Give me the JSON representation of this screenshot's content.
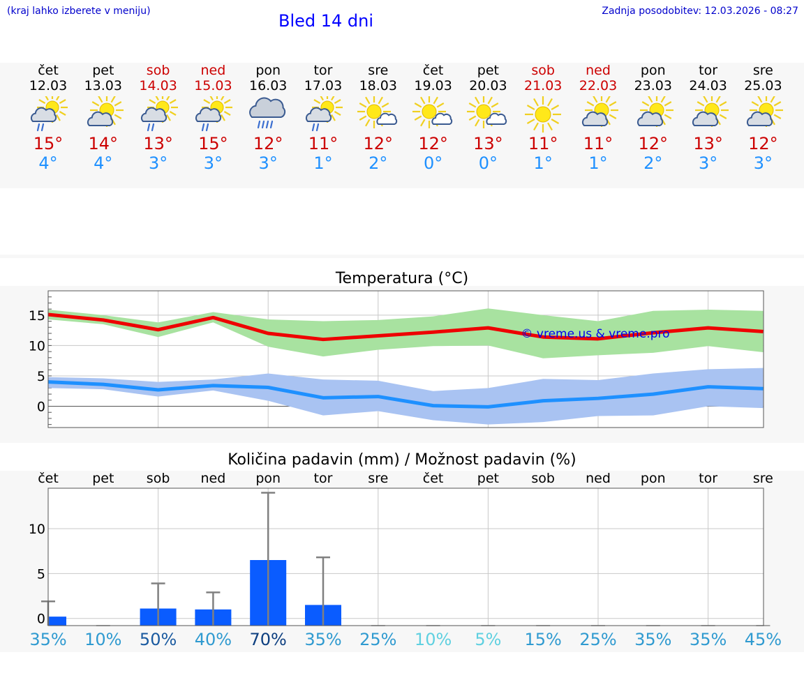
{
  "header": {
    "hint": "(kraj lahko izberete v meniju)",
    "title": "Bled 14 dni",
    "updated": "Zadnja posodobitev: 12.03.2026 - 08:27"
  },
  "days": [
    {
      "name": "čet",
      "date": "12.03",
      "weekend": false,
      "icon": "sun-cloud-light-rain-icon",
      "tmax": "15°",
      "tmin": "4°"
    },
    {
      "name": "pet",
      "date": "13.03",
      "weekend": false,
      "icon": "sun-cloud-icon",
      "tmax": "14°",
      "tmin": "4°"
    },
    {
      "name": "sob",
      "date": "14.03",
      "weekend": true,
      "icon": "sun-cloud-light-rain-icon",
      "tmax": "13°",
      "tmin": "3°"
    },
    {
      "name": "ned",
      "date": "15.03",
      "weekend": true,
      "icon": "sun-cloud-light-rain-icon",
      "tmax": "15°",
      "tmin": "3°"
    },
    {
      "name": "pon",
      "date": "16.03",
      "weekend": false,
      "icon": "cloud-rain-icon",
      "tmax": "12°",
      "tmin": "3°"
    },
    {
      "name": "tor",
      "date": "17.03",
      "weekend": false,
      "icon": "sun-cloud-light-rain-icon",
      "tmax": "11°",
      "tmin": "1°"
    },
    {
      "name": "sre",
      "date": "18.03",
      "weekend": false,
      "icon": "sun-small-cloud-icon",
      "tmax": "12°",
      "tmin": "2°"
    },
    {
      "name": "čet",
      "date": "19.03",
      "weekend": false,
      "icon": "sun-small-cloud-icon",
      "tmax": "12°",
      "tmin": "0°"
    },
    {
      "name": "pet",
      "date": "20.03",
      "weekend": false,
      "icon": "sun-small-cloud-icon",
      "tmax": "13°",
      "tmin": "0°"
    },
    {
      "name": "sob",
      "date": "21.03",
      "weekend": true,
      "icon": "sun-icon",
      "tmax": "11°",
      "tmin": "1°"
    },
    {
      "name": "ned",
      "date": "22.03",
      "weekend": true,
      "icon": "sun-cloud-icon",
      "tmax": "11°",
      "tmin": "1°"
    },
    {
      "name": "pon",
      "date": "23.03",
      "weekend": false,
      "icon": "sun-cloud-icon",
      "tmax": "12°",
      "tmin": "2°"
    },
    {
      "name": "tor",
      "date": "24.03",
      "weekend": false,
      "icon": "sun-cloud-icon",
      "tmax": "13°",
      "tmin": "3°"
    },
    {
      "name": "sre",
      "date": "25.03",
      "weekend": false,
      "icon": "sun-cloud-icon",
      "tmax": "12°",
      "tmin": "3°"
    }
  ],
  "chart_data": [
    {
      "type": "line",
      "title": "Temperatura (°C)",
      "watermark": "© vreme.us & vreme.pro",
      "ylim": [
        -3.5,
        19
      ],
      "yticks": [
        0,
        5,
        10,
        15
      ],
      "x": [
        1,
        2,
        3,
        4,
        5,
        6,
        7,
        8,
        9,
        10,
        11,
        12,
        13,
        14
      ],
      "series": [
        {
          "name": "max",
          "color": "#ee0000",
          "values": [
            15.1,
            14.2,
            12.6,
            14.6,
            12.0,
            11.0,
            11.6,
            12.2,
            12.9,
            11.4,
            11.1,
            12.1,
            12.9,
            12.3
          ],
          "band_low": [
            14.3,
            13.5,
            11.4,
            13.8,
            9.8,
            8.2,
            9.3,
            9.9,
            10.0,
            7.9,
            8.4,
            8.8,
            9.9,
            8.9
          ],
          "band_high": [
            15.9,
            15.0,
            13.8,
            15.5,
            14.3,
            14.0,
            14.2,
            14.8,
            16.1,
            15.0,
            14.0,
            15.7,
            15.9,
            15.7
          ],
          "band_color": "#a8e2a0"
        },
        {
          "name": "min",
          "color": "#1e90ff",
          "values": [
            4.0,
            3.6,
            2.7,
            3.4,
            3.1,
            1.4,
            1.6,
            0.1,
            -0.1,
            0.9,
            1.3,
            2.0,
            3.2,
            2.9
          ],
          "band_low": [
            3.0,
            2.8,
            1.6,
            2.6,
            0.9,
            -1.5,
            -0.8,
            -2.3,
            -3.0,
            -2.6,
            -1.6,
            -1.5,
            0.0,
            -0.3
          ],
          "band_high": [
            4.8,
            4.6,
            4.0,
            4.4,
            5.4,
            4.4,
            4.2,
            2.5,
            3.0,
            4.5,
            4.3,
            5.4,
            6.1,
            6.3
          ],
          "band_color": "#a9c3f2"
        }
      ]
    },
    {
      "type": "bar",
      "title": "Količina padavin (mm) / Možnost padavin (%)",
      "ylim": [
        -0.8,
        14.5
      ],
      "yticks": [
        0,
        5,
        10
      ],
      "categories": [
        "čet",
        "pet",
        "sob",
        "ned",
        "pon",
        "tor",
        "sre",
        "čet",
        "pet",
        "sob",
        "ned",
        "pon",
        "tor",
        "sre"
      ],
      "values": [
        0.2,
        0,
        1.1,
        1.0,
        6.5,
        1.5,
        0,
        0,
        0,
        0,
        0,
        0,
        0,
        0
      ],
      "error_high": [
        1.9,
        0,
        3.9,
        2.9,
        14.0,
        6.8,
        0,
        0,
        0,
        0,
        0,
        0,
        0,
        0
      ],
      "probability": [
        {
          "label": "35%",
          "color": "#2f9ad0"
        },
        {
          "label": "10%",
          "color": "#2f9ad0"
        },
        {
          "label": "50%",
          "color": "#1a5aa0"
        },
        {
          "label": "40%",
          "color": "#2f9ad0"
        },
        {
          "label": "70%",
          "color": "#0d3f80"
        },
        {
          "label": "35%",
          "color": "#2f9ad0"
        },
        {
          "label": "25%",
          "color": "#2f9ad0"
        },
        {
          "label": "10%",
          "color": "#5fd0e0"
        },
        {
          "label": "5%",
          "color": "#5fd0e0"
        },
        {
          "label": "15%",
          "color": "#2f9ad0"
        },
        {
          "label": "25%",
          "color": "#2f9ad0"
        },
        {
          "label": "35%",
          "color": "#2f9ad0"
        },
        {
          "label": "35%",
          "color": "#2f9ad0"
        },
        {
          "label": "45%",
          "color": "#2f9ad0"
        }
      ],
      "bar_color": "#0a5cff",
      "error_color": "#808080"
    }
  ]
}
